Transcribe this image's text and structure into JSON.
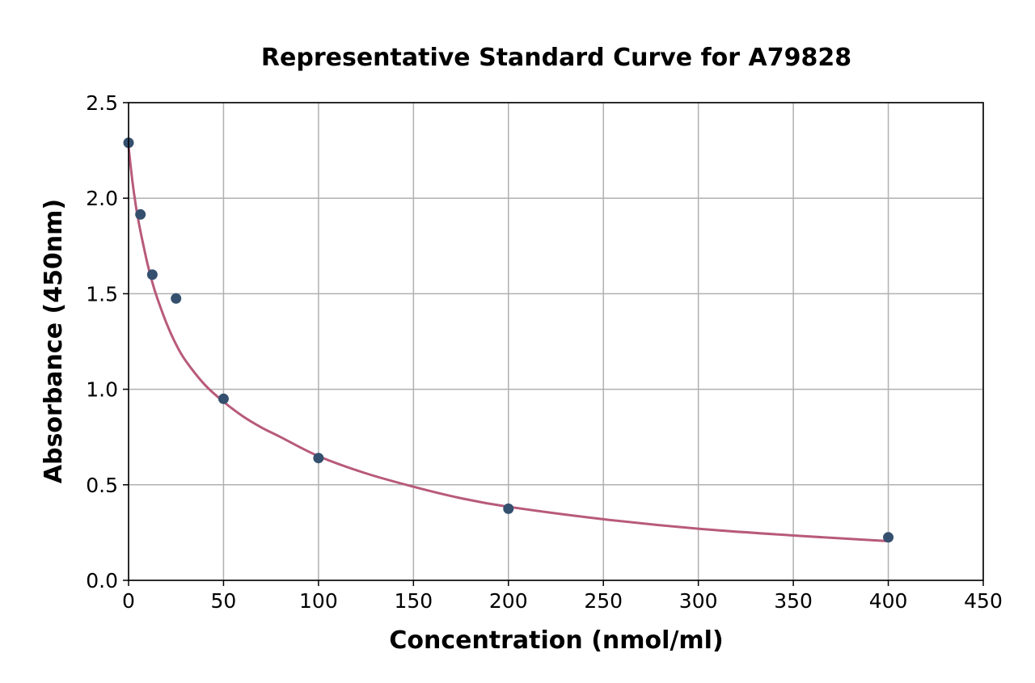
{
  "chart_data": {
    "type": "scatter",
    "title": "Representative Standard Curve for A79828",
    "xlabel": "Concentration (nmol/ml)",
    "ylabel": "Absorbance (450nm)",
    "xlim": [
      0,
      450
    ],
    "ylim": [
      0,
      2.5
    ],
    "xticks": [
      0,
      50,
      100,
      150,
      200,
      250,
      300,
      350,
      400,
      450
    ],
    "yticks": [
      0.0,
      0.5,
      1.0,
      1.5,
      2.0,
      2.5
    ],
    "xtick_labels": [
      "0",
      "50",
      "100",
      "150",
      "200",
      "250",
      "300",
      "350",
      "400",
      "450"
    ],
    "ytick_labels": [
      "0.0",
      "0.5",
      "1.0",
      "1.5",
      "2.0",
      "2.5"
    ],
    "grid": true,
    "series": [
      {
        "kind": "points",
        "color": "#34506e",
        "x": [
          0,
          6.25,
          12.5,
          25,
          50,
          100,
          200,
          400
        ],
        "y": [
          2.29,
          1.915,
          1.6,
          1.475,
          0.95,
          0.64,
          0.375,
          0.225
        ]
      },
      {
        "kind": "fit-curve",
        "color": "#b85a7b",
        "x": [
          0,
          2,
          4,
          6,
          8,
          10,
          12.5,
          15,
          20,
          25,
          30,
          40,
          50,
          60,
          70,
          80,
          100,
          125,
          150,
          175,
          200,
          250,
          300,
          350,
          400
        ],
        "y": [
          2.27,
          2.09,
          1.95,
          1.84,
          1.745,
          1.655,
          1.56,
          1.48,
          1.345,
          1.235,
          1.15,
          1.025,
          0.935,
          0.86,
          0.8,
          0.75,
          0.65,
          0.56,
          0.49,
          0.43,
          0.385,
          0.32,
          0.27,
          0.235,
          0.205
        ]
      }
    ]
  }
}
